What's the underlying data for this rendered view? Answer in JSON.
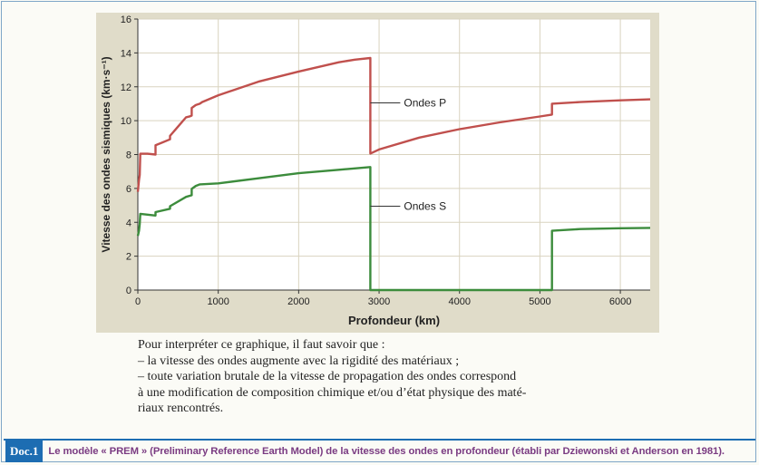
{
  "chart_data": {
    "type": "line",
    "xlabel": "Profondeur (km)",
    "ylabel": "Vitesse des ondes sismiques (km·s⁻¹)",
    "xlim": [
      0,
      6371
    ],
    "ylim": [
      0,
      16
    ],
    "xticks": [
      0,
      1000,
      2000,
      3000,
      4000,
      5000,
      6000
    ],
    "yticks": [
      0,
      2,
      4,
      6,
      8,
      10,
      12,
      14,
      16
    ],
    "grid": true,
    "legend": "inline labels",
    "series": [
      {
        "name": "Ondes P",
        "color": "#c0504d",
        "x": [
          0,
          15,
          24,
          30,
          80,
          120,
          220,
          220,
          300,
          400,
          400,
          500,
          600,
          650,
          670,
          670,
          720,
          771,
          800,
          1000,
          1500,
          2000,
          2500,
          2700,
          2891,
          2891,
          3000,
          3500,
          4000,
          4500,
          5000,
          5150,
          5150,
          5500,
          6000,
          6371
        ],
        "y": [
          5.8,
          6.5,
          6.8,
          8.05,
          8.05,
          8.05,
          8.0,
          8.55,
          8.7,
          8.9,
          9.1,
          9.65,
          10.2,
          10.26,
          10.3,
          10.75,
          10.92,
          11.0,
          11.1,
          11.5,
          12.3,
          12.9,
          13.45,
          13.6,
          13.7,
          8.06,
          8.3,
          9.0,
          9.5,
          9.9,
          10.25,
          10.36,
          11.0,
          11.1,
          11.2,
          11.26
        ]
      },
      {
        "name": "Ondes S",
        "color": "#3c8c3c",
        "x": [
          0,
          15,
          24,
          30,
          120,
          220,
          220,
          400,
          400,
          600,
          670,
          670,
          720,
          771,
          1000,
          1500,
          2000,
          2500,
          2891,
          2891,
          5150,
          5150,
          5500,
          6000,
          6371
        ],
        "y": [
          3.2,
          3.5,
          3.9,
          4.5,
          4.45,
          4.4,
          4.6,
          4.8,
          4.95,
          5.5,
          5.6,
          5.97,
          6.15,
          6.24,
          6.3,
          6.6,
          6.9,
          7.1,
          7.26,
          0,
          0,
          3.5,
          3.6,
          3.65,
          3.67
        ]
      }
    ],
    "annotations": [
      {
        "text": "Ondes P",
        "series": "Ondes P",
        "at_x": 2891,
        "at_y": 11.05
      },
      {
        "text": "Ondes S",
        "series": "Ondes S",
        "at_x": 2891,
        "at_y": 4.95
      }
    ]
  },
  "explanation": {
    "line1": "Pour interpréter ce graphique, il faut savoir que :",
    "line2": "– la vitesse des ondes augmente avec la rigidité des matériaux ;",
    "line3": "– toute variation brutale de la vitesse de propagation des ondes correspond",
    "line4": "à une modification de composition chimique et/ou d’état physique des maté-",
    "line5": "riaux rencontrés."
  },
  "caption": {
    "badge": "Doc.1",
    "text": "Le modèle « PREM » (Preliminary Reference Earth Model) de la vitesse des ondes en profondeur (établi par Dziewonski et Anderson en 1981)."
  },
  "colors": {
    "panel_bg": "#e0dcc9",
    "plot_bg": "#ffffff",
    "grid": "#d9d3bf",
    "badge_bg": "#1d6db2",
    "caption_text": "#7a3b82"
  }
}
